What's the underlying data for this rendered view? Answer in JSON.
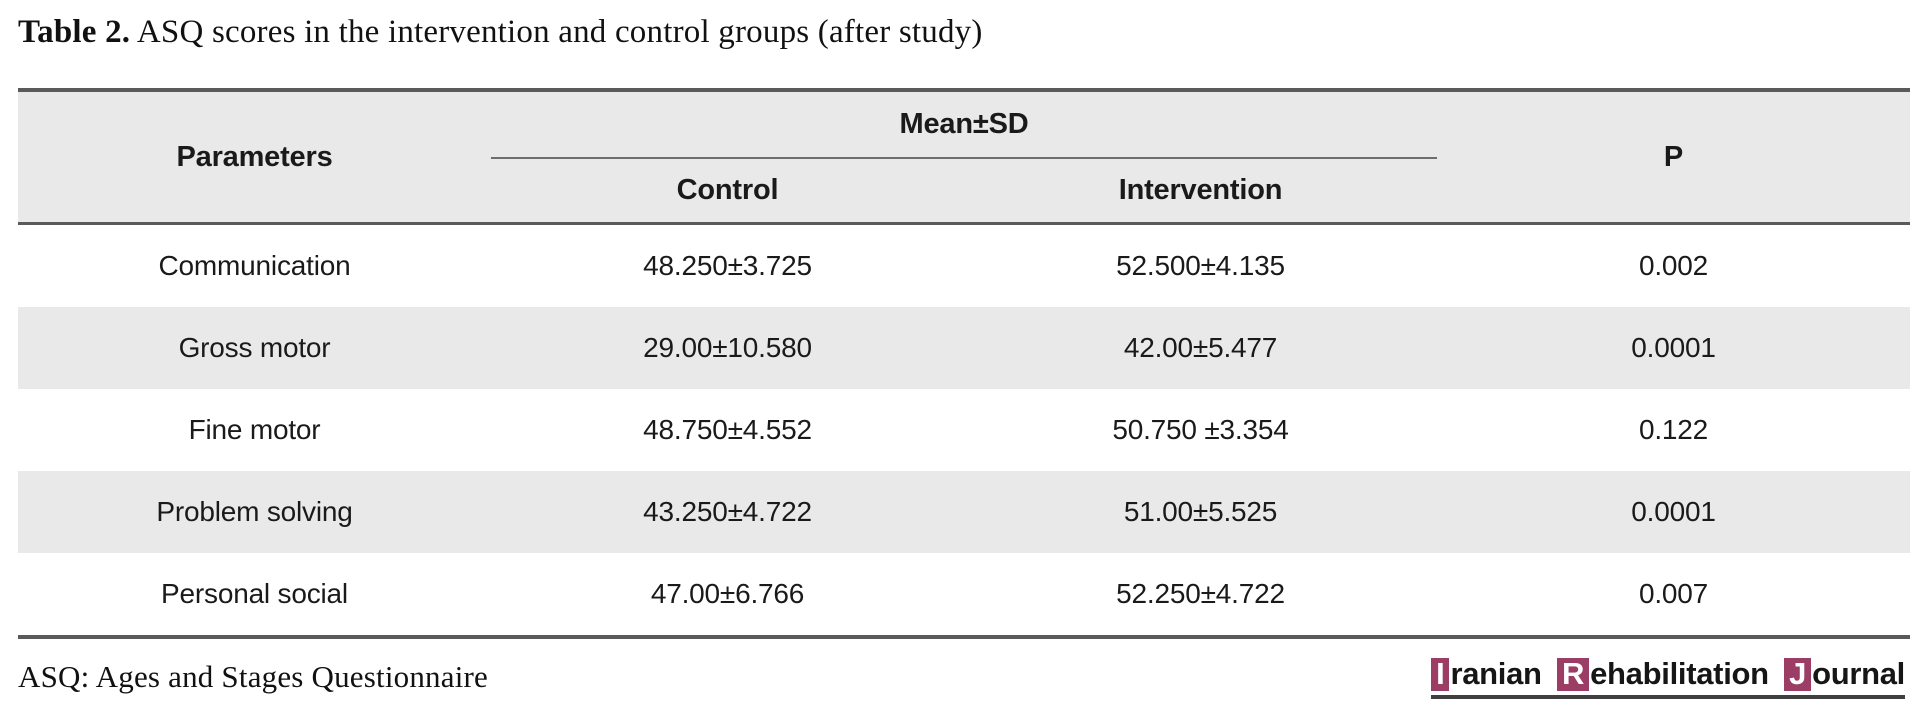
{
  "title": {
    "label": "Table 2.",
    "text": " ASQ scores in the intervention and control groups (after study)"
  },
  "table": {
    "headers": {
      "parameters": "Parameters",
      "mean_sd": "Mean±SD",
      "control": "Control",
      "intervention": "Intervention",
      "p": "P"
    },
    "rows": [
      {
        "parameter": "Communication",
        "control": "48.250±3.725",
        "intervention": "52.500±4.135",
        "p": "0.002"
      },
      {
        "parameter": "Gross motor",
        "control": "29.00±10.580",
        "intervention": "42.00±5.477",
        "p": "0.0001"
      },
      {
        "parameter": "Fine motor",
        "control": "48.750±4.552",
        "intervention": "50.750 ±3.354",
        "p": "0.122"
      },
      {
        "parameter": "Problem solving",
        "control": "43.250±4.722",
        "intervention": "51.00±5.525",
        "p": "0.0001"
      },
      {
        "parameter": "Personal social",
        "control": "47.00±6.766",
        "intervention": "52.250±4.722",
        "p": "0.007"
      }
    ]
  },
  "footnote": "ASQ: Ages and Stages Questionnaire",
  "logo": {
    "parts": [
      {
        "initial": "I",
        "rest": "ranian"
      },
      {
        "initial": "R",
        "rest": "ehabilitation"
      },
      {
        "initial": "J",
        "rest": "ournal"
      }
    ]
  },
  "colors": {
    "accent": "#9C3D66",
    "row_stripe": "#E9E9EA",
    "border": "#595A5C",
    "text": "#1A1A1A"
  }
}
